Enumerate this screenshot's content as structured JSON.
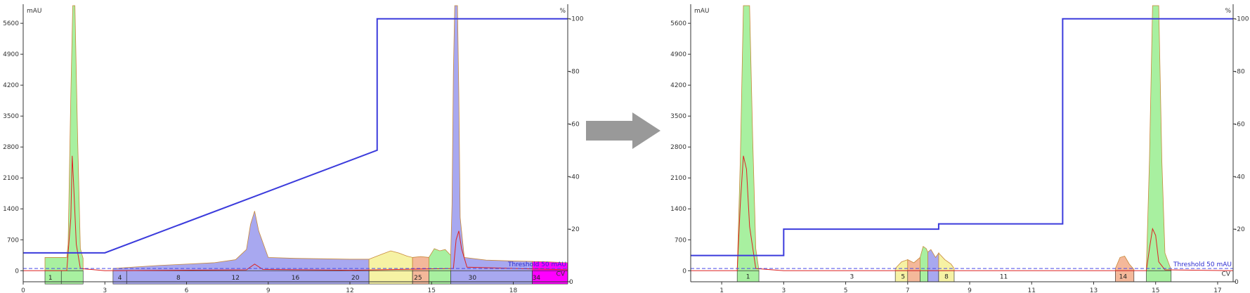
{
  "colors": {
    "gradient": "#3b3bdc",
    "threshold": "#4a4ae6",
    "trace_uv": "#c8893a",
    "trace_red": "#d22",
    "green": "#a8f0a0",
    "blue": "#a8a8f0",
    "yellow": "#f6f2a4",
    "orange": "#f4b89a",
    "magenta": "#ff00ff",
    "arrow": "#999999"
  },
  "arrow_icon": "right-arrow-icon",
  "chart_data": [
    {
      "type": "line",
      "ylabel": "mAU",
      "y2label": "%",
      "xlim": [
        0,
        20
      ],
      "xticks": [
        0,
        3,
        6,
        9,
        12,
        15,
        18
      ],
      "ylim": [
        -250,
        6000
      ],
      "yticks": [
        0,
        700,
        1400,
        2100,
        2800,
        3500,
        4200,
        4900,
        5600
      ],
      "y2lim": [
        0,
        105
      ],
      "y2ticks": [
        0,
        20,
        40,
        60,
        80,
        100
      ],
      "tick_label_y2": [
        "0",
        "-20",
        "-40",
        "-60",
        "-80",
        "-100"
      ],
      "threshold_label": "Threshold 50 mAU",
      "threshold_value": 50,
      "cv_label": "CV",
      "gradient": {
        "x": [
          0,
          3,
          13,
          13,
          20
        ],
        "y": [
          11,
          11,
          50,
          100,
          100
        ]
      },
      "fraction_bars": {
        "y": [
          -300,
          0
        ]
      },
      "fractions": [
        {
          "start": 0.8,
          "end": 1.4,
          "color": "green",
          "label": "1"
        },
        {
          "start": 1.4,
          "end": 2.2,
          "color": "green",
          "label": ""
        },
        {
          "start": 3.3,
          "end": 3.8,
          "color": "blue",
          "label": "4"
        },
        {
          "start": 3.8,
          "end": 12.7,
          "color": "blue",
          "label": ""
        },
        {
          "start": 12.7,
          "end": 14.3,
          "color": "yellow",
          "label": ""
        },
        {
          "start": 14.3,
          "end": 14.9,
          "color": "orange",
          "label": ""
        },
        {
          "start": 14.9,
          "end": 15.7,
          "color": "green",
          "label": ""
        },
        {
          "start": 15.7,
          "end": 18.7,
          "color": "blue",
          "label": ""
        },
        {
          "start": 18.7,
          "end": 20,
          "color": "magenta",
          "label": ""
        }
      ],
      "fraction_labels": [
        {
          "x": 1.0,
          "text": "1"
        },
        {
          "x": 3.55,
          "text": "4"
        },
        {
          "x": 5.7,
          "text": "8"
        },
        {
          "x": 7.8,
          "text": "12"
        },
        {
          "x": 10.0,
          "text": "16"
        },
        {
          "x": 12.2,
          "text": "20"
        },
        {
          "x": 14.5,
          "text": "25"
        },
        {
          "x": 16.5,
          "text": "30"
        },
        {
          "x": 18.85,
          "text": "34"
        }
      ],
      "regions": [
        {
          "color": "green",
          "x": [
            0.8,
            1.6,
            1.65,
            1.75,
            1.82,
            1.9,
            2.0,
            2.1,
            2.2
          ],
          "y": [
            300,
            300,
            600,
            4000,
            6000,
            6000,
            3000,
            500,
            280
          ]
        },
        {
          "color": "blue",
          "x": [
            3.3,
            4,
            5,
            6,
            7,
            7.8,
            8.2,
            8.35,
            8.5,
            8.65,
            9.0,
            10,
            11,
            12,
            12.7
          ],
          "y": [
            50,
            80,
            120,
            150,
            180,
            250,
            480,
            1050,
            1350,
            900,
            300,
            280,
            270,
            260,
            260
          ]
        },
        {
          "color": "yellow",
          "x": [
            12.7,
            13.2,
            13.5,
            13.8,
            14.1,
            14.3
          ],
          "y": [
            260,
            380,
            450,
            400,
            330,
            300
          ]
        },
        {
          "color": "orange",
          "x": [
            14.3,
            14.6,
            14.9
          ],
          "y": [
            300,
            320,
            300
          ]
        },
        {
          "color": "green",
          "x": [
            14.9,
            15.1,
            15.3,
            15.5,
            15.7
          ],
          "y": [
            300,
            500,
            450,
            480,
            350
          ]
        },
        {
          "color": "blue",
          "x": [
            15.7,
            15.75,
            15.8,
            15.85,
            15.9,
            15.95,
            16.0,
            16.05,
            16.2,
            17,
            18,
            18.7
          ],
          "y": [
            350,
            1500,
            4500,
            6000,
            6000,
            6000,
            4000,
            1200,
            300,
            240,
            220,
            210
          ]
        },
        {
          "color": "magenta",
          "x": [
            18.7,
            19.3,
            20
          ],
          "y": [
            210,
            200,
            180
          ]
        }
      ],
      "trace_red": {
        "x": [
          0,
          1.6,
          1.75,
          1.8,
          1.85,
          1.95,
          2.1,
          3,
          8.2,
          8.5,
          8.8,
          12,
          15.8,
          15.9,
          16.0,
          16.1,
          16.3,
          20
        ],
        "y": [
          0,
          0,
          1200,
          2600,
          2000,
          600,
          50,
          0,
          20,
          150,
          30,
          10,
          50,
          700,
          900,
          500,
          80,
          20
        ]
      }
    },
    {
      "type": "line",
      "ylabel": "mAU",
      "y2label": "%",
      "xlim": [
        0,
        17.5
      ],
      "xticks": [
        1,
        3,
        5,
        7,
        9,
        11,
        13,
        15,
        17
      ],
      "ylim": [
        -250,
        6000
      ],
      "yticks": [
        0,
        700,
        1400,
        2100,
        2800,
        3500,
        4200,
        4900,
        5600
      ],
      "y2lim": [
        0,
        105
      ],
      "y2ticks": [
        0,
        20,
        40,
        60,
        80,
        100
      ],
      "tick_label_y2": [
        "0",
        "-20",
        "-40",
        "-60",
        "-80",
        "-100"
      ],
      "threshold_label": "Threshold 50 mAU",
      "threshold_value": 50,
      "cv_label": "CV",
      "gradient": {
        "x": [
          0,
          3,
          3,
          8,
          8,
          12,
          12,
          17.5
        ],
        "y": [
          10,
          10,
          20,
          20,
          22,
          22,
          100,
          100
        ]
      },
      "fraction_bars": {
        "y": [
          -250,
          0
        ]
      },
      "fractions": [
        {
          "start": 1.5,
          "end": 2.2,
          "color": "green",
          "label": "1"
        },
        {
          "start": 6.6,
          "end": 7.0,
          "color": "yellow",
          "label": ""
        },
        {
          "start": 7.0,
          "end": 7.4,
          "color": "orange",
          "label": ""
        },
        {
          "start": 7.4,
          "end": 7.65,
          "color": "green",
          "label": ""
        },
        {
          "start": 7.65,
          "end": 8.0,
          "color": "blue",
          "label": ""
        },
        {
          "start": 8.0,
          "end": 8.5,
          "color": "yellow",
          "label": ""
        },
        {
          "start": 13.7,
          "end": 14.3,
          "color": "orange",
          "label": ""
        },
        {
          "start": 14.7,
          "end": 15.5,
          "color": "green",
          "label": ""
        }
      ],
      "fraction_labels": [
        {
          "x": 1.85,
          "text": "1"
        },
        {
          "x": 5.2,
          "text": "3"
        },
        {
          "x": 6.85,
          "text": "5"
        },
        {
          "x": 8.25,
          "text": "8"
        },
        {
          "x": 10.1,
          "text": "11"
        },
        {
          "x": 13.95,
          "text": "14"
        }
      ],
      "regions": [
        {
          "color": "green",
          "x": [
            1.5,
            1.6,
            1.7,
            1.8,
            1.9,
            2.0,
            2.1,
            2.2
          ],
          "y": [
            0,
            2500,
            6000,
            6000,
            6000,
            3000,
            500,
            20
          ]
        },
        {
          "color": "yellow",
          "x": [
            6.6,
            6.8,
            7.0
          ],
          "y": [
            50,
            200,
            250
          ]
        },
        {
          "color": "orange",
          "x": [
            7.0,
            7.2,
            7.4
          ],
          "y": [
            250,
            180,
            300
          ]
        },
        {
          "color": "green",
          "x": [
            7.4,
            7.5,
            7.6,
            7.65
          ],
          "y": [
            300,
            550,
            500,
            420
          ]
        },
        {
          "color": "blue",
          "x": [
            7.65,
            7.75,
            7.9,
            8.0
          ],
          "y": [
            420,
            480,
            300,
            400
          ]
        },
        {
          "color": "yellow",
          "x": [
            8.0,
            8.2,
            8.4,
            8.5
          ],
          "y": [
            400,
            250,
            150,
            50
          ]
        },
        {
          "color": "orange",
          "x": [
            13.7,
            13.85,
            14.0,
            14.15,
            14.3
          ],
          "y": [
            50,
            300,
            330,
            150,
            30
          ]
        },
        {
          "color": "green",
          "x": [
            14.7,
            14.8,
            14.9,
            15.0,
            15.1,
            15.2,
            15.3,
            15.5
          ],
          "y": [
            50,
            2500,
            6000,
            6000,
            6000,
            2500,
            400,
            20
          ]
        }
      ],
      "trace_red": {
        "x": [
          0,
          1.5,
          1.6,
          1.7,
          1.8,
          1.9,
          2.1,
          3,
          14.7,
          14.8,
          14.9,
          15.0,
          15.1,
          15.3,
          17.5
        ],
        "y": [
          0,
          0,
          1500,
          2600,
          2300,
          1000,
          50,
          0,
          0,
          500,
          950,
          800,
          200,
          20,
          0
        ]
      }
    }
  ]
}
